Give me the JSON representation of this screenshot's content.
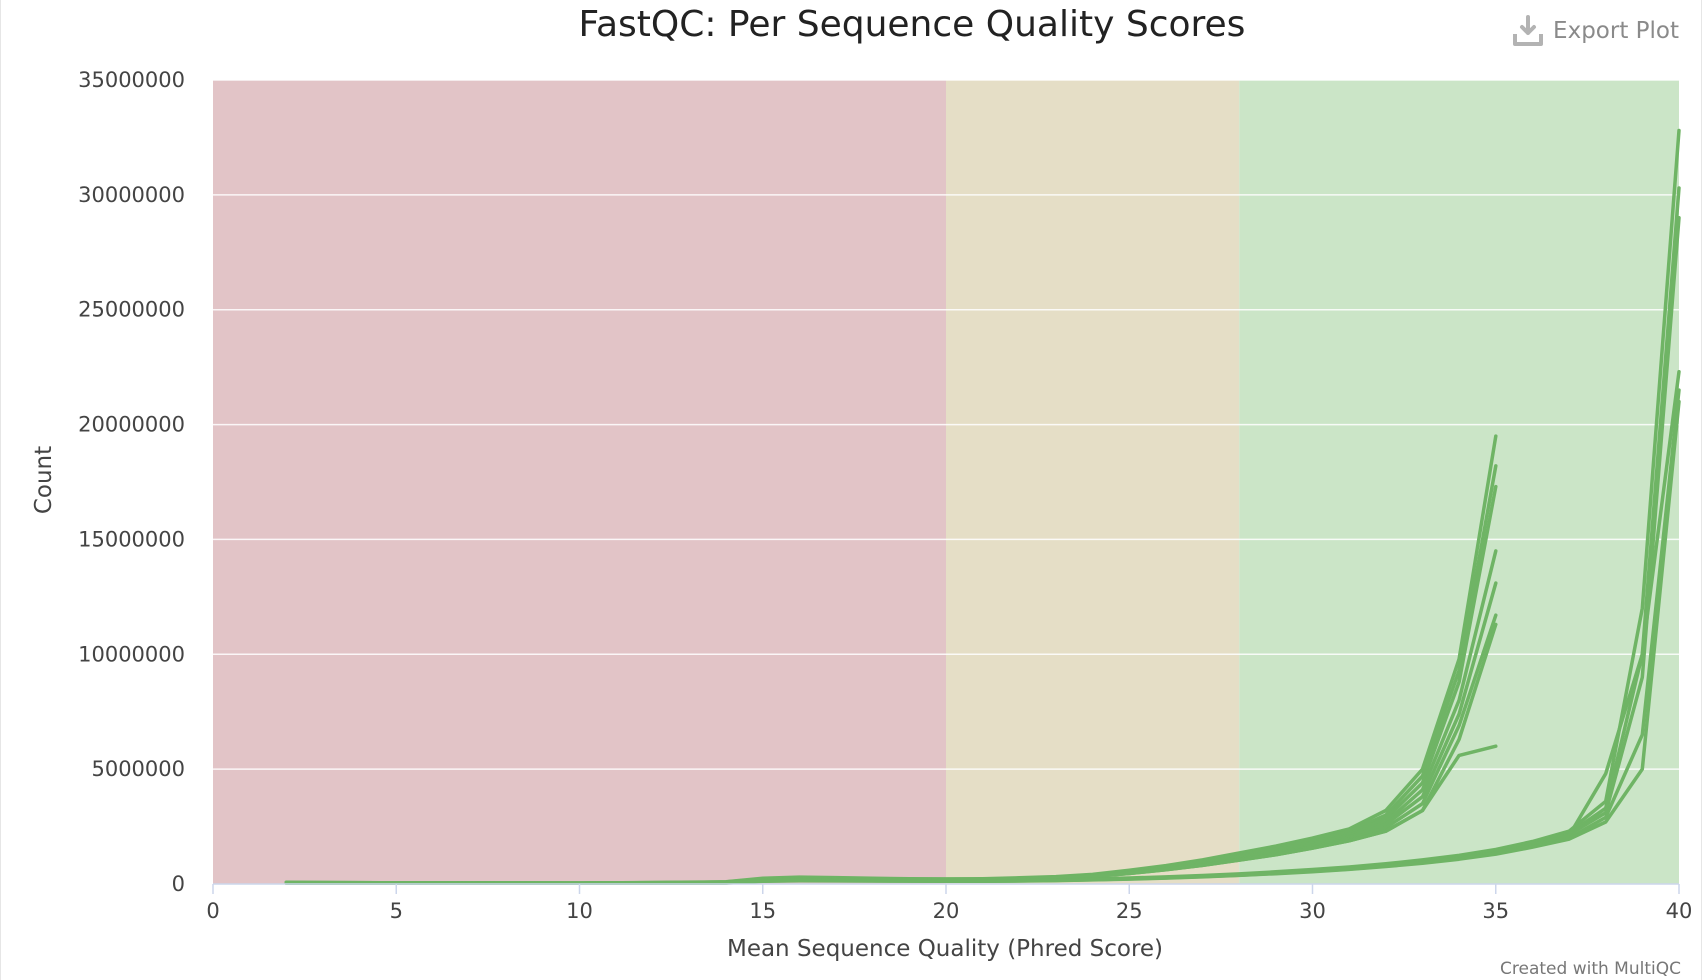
{
  "export": {
    "label": "Export Plot",
    "icon": "download-icon"
  },
  "credits": "Created with MultiQC",
  "chart_data": {
    "type": "line",
    "title": "FastQC: Per Sequence Quality Scores",
    "xlabel": "Mean Sequence Quality (Phred Score)",
    "ylabel": "Count",
    "xlim": [
      0,
      40
    ],
    "ylim": [
      0,
      35000000
    ],
    "x_ticks": [
      0,
      5,
      10,
      15,
      20,
      25,
      30,
      35,
      40
    ],
    "y_ticks": [
      0,
      5000000,
      10000000,
      15000000,
      20000000,
      25000000,
      30000000,
      35000000
    ],
    "grid": true,
    "legend": "none",
    "bands": [
      {
        "from": 0,
        "to": 20,
        "color": "#e2c4c7"
      },
      {
        "from": 20,
        "to": 28,
        "color": "#e5dec6"
      },
      {
        "from": 28,
        "to": 40,
        "color": "#cbe5c7"
      }
    ],
    "line_color": "#6fb465",
    "series": [
      {
        "x": [
          2,
          5,
          10,
          13,
          14,
          15,
          16,
          17,
          18,
          19,
          20,
          21,
          22,
          23,
          24,
          25,
          26,
          27,
          28,
          29,
          30,
          31,
          32,
          33,
          34,
          35
        ],
        "y": [
          80000,
          50000,
          40000,
          60000,
          100000,
          250000,
          300000,
          280000,
          250000,
          230000,
          220000,
          230000,
          270000,
          320000,
          420000,
          600000,
          800000,
          1050000,
          1350000,
          1650000,
          2000000,
          2400000,
          3200000,
          5000000,
          9800000,
          19500000
        ]
      },
      {
        "x": [
          2,
          10,
          14,
          15,
          16,
          17,
          18,
          19,
          20,
          21,
          22,
          23,
          24,
          25,
          26,
          27,
          28,
          29,
          30,
          31,
          32,
          33,
          34,
          35
        ],
        "y": [
          60000,
          40000,
          90000,
          220000,
          260000,
          250000,
          230000,
          210000,
          200000,
          210000,
          250000,
          300000,
          400000,
          560000,
          760000,
          1000000,
          1280000,
          1560000,
          1900000,
          2300000,
          3000000,
          4700000,
          9300000,
          18200000
        ]
      },
      {
        "x": [
          2,
          10,
          14,
          15,
          16,
          17,
          18,
          19,
          20,
          21,
          22,
          23,
          24,
          25,
          26,
          27,
          28,
          29,
          30,
          31,
          32,
          33,
          34,
          35
        ],
        "y": [
          60000,
          40000,
          80000,
          200000,
          240000,
          230000,
          210000,
          200000,
          190000,
          200000,
          240000,
          290000,
          380000,
          540000,
          730000,
          960000,
          1230000,
          1500000,
          1820000,
          2200000,
          2850000,
          4400000,
          8800000,
          17300000
        ]
      },
      {
        "x": [
          2,
          10,
          14,
          15,
          16,
          17,
          18,
          19,
          20,
          21,
          22,
          23,
          24,
          25,
          26,
          27,
          28,
          29,
          30,
          31,
          32,
          33,
          34,
          35
        ],
        "y": [
          50000,
          40000,
          70000,
          190000,
          220000,
          210000,
          200000,
          190000,
          180000,
          190000,
          230000,
          280000,
          360000,
          510000,
          700000,
          920000,
          1180000,
          1440000,
          1760000,
          2120000,
          2700000,
          4100000,
          8000000,
          14500000
        ]
      },
      {
        "x": [
          2,
          10,
          14,
          15,
          16,
          17,
          18,
          19,
          20,
          21,
          22,
          23,
          24,
          25,
          26,
          27,
          28,
          29,
          30,
          31,
          32,
          33,
          34,
          35
        ],
        "y": [
          50000,
          40000,
          70000,
          180000,
          210000,
          200000,
          190000,
          180000,
          175000,
          185000,
          220000,
          270000,
          350000,
          490000,
          670000,
          880000,
          1130000,
          1380000,
          1690000,
          2040000,
          2600000,
          3800000,
          7400000,
          13100000
        ]
      },
      {
        "x": [
          2,
          10,
          14,
          15,
          16,
          17,
          18,
          19,
          20,
          21,
          22,
          23,
          24,
          25,
          26,
          27,
          28,
          29,
          30,
          31,
          32,
          33,
          34,
          35
        ],
        "y": [
          50000,
          40000,
          60000,
          170000,
          200000,
          190000,
          180000,
          170000,
          170000,
          180000,
          210000,
          260000,
          340000,
          470000,
          640000,
          840000,
          1080000,
          1320000,
          1620000,
          1960000,
          2450000,
          3500000,
          6900000,
          11700000
        ]
      },
      {
        "x": [
          2,
          10,
          14,
          15,
          16,
          17,
          18,
          19,
          20,
          21,
          22,
          23,
          24,
          25,
          26,
          27,
          28,
          29,
          30,
          31,
          32,
          33,
          34,
          35
        ],
        "y": [
          50000,
          40000,
          60000,
          160000,
          190000,
          180000,
          170000,
          165000,
          165000,
          175000,
          205000,
          250000,
          330000,
          455000,
          620000,
          810000,
          1040000,
          1270000,
          1560000,
          1880000,
          2300000,
          3200000,
          6300000,
          11300000
        ]
      },
      {
        "x": [
          2,
          10,
          14,
          15,
          16,
          17,
          18,
          19,
          20,
          21,
          22,
          23,
          24,
          25,
          26,
          27,
          28,
          29,
          30,
          31,
          32,
          33,
          34,
          35
        ],
        "y": [
          50000,
          40000,
          60000,
          160000,
          190000,
          180000,
          170000,
          165000,
          165000,
          175000,
          205000,
          250000,
          330000,
          455000,
          620000,
          810000,
          1040000,
          1270000,
          1560000,
          1880000,
          2300000,
          3200000,
          5600000,
          6000000
        ]
      },
      {
        "x": [
          2,
          10,
          14,
          15,
          16,
          17,
          18,
          19,
          20,
          21,
          22,
          23,
          24,
          25,
          26,
          27,
          28,
          29,
          30,
          31,
          32,
          33,
          34,
          35,
          36,
          37,
          38,
          39,
          40
        ],
        "y": [
          50000,
          30000,
          60000,
          170000,
          200000,
          190000,
          180000,
          170000,
          160000,
          150000,
          160000,
          180000,
          220000,
          260000,
          310000,
          370000,
          440000,
          530000,
          630000,
          740000,
          880000,
          1050000,
          1250000,
          1500000,
          1850000,
          2300000,
          3600000,
          12000000,
          32800000
        ]
      },
      {
        "x": [
          2,
          10,
          14,
          15,
          16,
          17,
          18,
          19,
          20,
          21,
          22,
          23,
          24,
          25,
          26,
          27,
          28,
          29,
          30,
          31,
          32,
          33,
          34,
          35,
          36,
          37,
          38,
          39,
          40
        ],
        "y": [
          40000,
          30000,
          50000,
          150000,
          180000,
          170000,
          160000,
          150000,
          140000,
          140000,
          150000,
          170000,
          200000,
          240000,
          290000,
          350000,
          420000,
          500000,
          600000,
          710000,
          840000,
          1000000,
          1200000,
          1450000,
          1800000,
          2200000,
          3300000,
          10000000,
          30300000
        ]
      },
      {
        "x": [
          2,
          10,
          14,
          15,
          16,
          17,
          18,
          19,
          20,
          21,
          22,
          23,
          24,
          25,
          26,
          27,
          28,
          29,
          30,
          31,
          32,
          33,
          34,
          35,
          36,
          37,
          38,
          39,
          40
        ],
        "y": [
          40000,
          30000,
          50000,
          140000,
          170000,
          160000,
          150000,
          145000,
          135000,
          135000,
          145000,
          165000,
          195000,
          235000,
          280000,
          340000,
          410000,
          490000,
          580000,
          690000,
          820000,
          980000,
          1170000,
          1400000,
          1750000,
          2150000,
          3100000,
          9000000,
          29000000
        ]
      },
      {
        "x": [
          2,
          10,
          14,
          15,
          16,
          17,
          18,
          19,
          20,
          21,
          22,
          23,
          24,
          25,
          26,
          27,
          28,
          29,
          30,
          31,
          32,
          33,
          34,
          35,
          36,
          37,
          38,
          39,
          40
        ],
        "y": [
          40000,
          30000,
          50000,
          130000,
          160000,
          150000,
          140000,
          135000,
          130000,
          130000,
          140000,
          160000,
          190000,
          225000,
          270000,
          330000,
          400000,
          470000,
          560000,
          670000,
          800000,
          950000,
          1140000,
          1360000,
          1700000,
          2100000,
          4800000,
          10000000,
          22300000
        ]
      },
      {
        "x": [
          2,
          10,
          14,
          15,
          16,
          17,
          18,
          19,
          20,
          21,
          22,
          23,
          24,
          25,
          26,
          27,
          28,
          29,
          30,
          31,
          32,
          33,
          34,
          35,
          36,
          37,
          38,
          39,
          40
        ],
        "y": [
          40000,
          30000,
          50000,
          130000,
          150000,
          145000,
          135000,
          130000,
          125000,
          125000,
          135000,
          155000,
          185000,
          220000,
          265000,
          320000,
          385000,
          460000,
          550000,
          650000,
          780000,
          930000,
          1110000,
          1330000,
          1650000,
          2000000,
          2900000,
          6500000,
          21500000
        ]
      },
      {
        "x": [
          2,
          10,
          14,
          15,
          16,
          17,
          18,
          19,
          20,
          21,
          22,
          23,
          24,
          25,
          26,
          27,
          28,
          29,
          30,
          31,
          32,
          33,
          34,
          35,
          36,
          37,
          38,
          39,
          40
        ],
        "y": [
          40000,
          30000,
          40000,
          120000,
          140000,
          135000,
          130000,
          125000,
          120000,
          120000,
          130000,
          150000,
          180000,
          215000,
          255000,
          310000,
          375000,
          450000,
          535000,
          635000,
          760000,
          900000,
          1080000,
          1300000,
          1600000,
          1950000,
          2700000,
          5000000,
          21000000
        ]
      }
    ]
  }
}
